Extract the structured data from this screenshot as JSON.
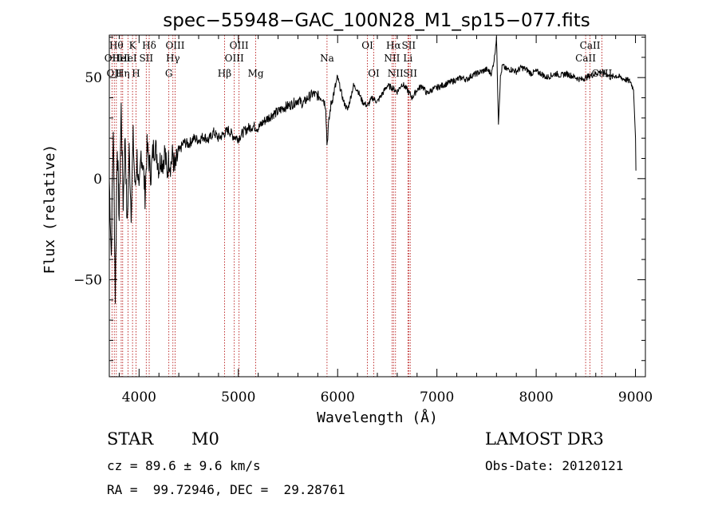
{
  "chart_data": {
    "type": "line",
    "title": "spec−55948−GAC_100N28_M1_sp15−077.fits",
    "xlabel": "Wavelength (Å)",
    "ylabel": "Flux (relative)",
    "xlim": [
      3700,
      9100
    ],
    "ylim": [
      -98,
      71
    ],
    "xticks": [
      {
        "value": 4000,
        "label": "4000"
      },
      {
        "value": 5000,
        "label": "5000"
      },
      {
        "value": 6000,
        "label": "6000"
      },
      {
        "value": 7000,
        "label": "7000"
      },
      {
        "value": 8000,
        "label": "8000"
      },
      {
        "value": 9000,
        "label": "9000"
      }
    ],
    "yticks": [
      {
        "value": 50,
        "label": "50"
      },
      {
        "value": 0,
        "label": "0"
      },
      {
        "value": -50,
        "label": "−50"
      }
    ],
    "series": [
      {
        "x": [
          3700,
          3720,
          3740,
          3760,
          3780,
          3800,
          3820,
          3840,
          3860,
          3880,
          3900,
          3920,
          3940,
          3960,
          3980,
          4000,
          4020,
          4040,
          4060,
          4080,
          4100,
          4120,
          4140,
          4160,
          4180,
          4200,
          4220,
          4240,
          4260,
          4280,
          4300,
          4320,
          4340,
          4360,
          4380,
          4400,
          4450,
          4500,
          4550,
          4600,
          4650,
          4700,
          4750,
          4800,
          4850,
          4900,
          4950,
          5000,
          5050,
          5100,
          5150,
          5200,
          5250,
          5300,
          5350,
          5400,
          5450,
          5500,
          5550,
          5600,
          5650,
          5700,
          5750,
          5800,
          5850,
          5880,
          5893,
          5905,
          5930,
          5960,
          6000,
          6030,
          6060,
          6100,
          6130,
          6160,
          6200,
          6250,
          6300,
          6350,
          6400,
          6450,
          6500,
          6550,
          6600,
          6650,
          6700,
          6750,
          6800,
          6850,
          6900,
          6950,
          7000,
          7050,
          7100,
          7150,
          7200,
          7250,
          7300,
          7350,
          7400,
          7450,
          7500,
          7550,
          7580,
          7600,
          7620,
          7640,
          7660,
          7700,
          7750,
          7800,
          7850,
          7900,
          7950,
          8000,
          8050,
          8100,
          8150,
          8200,
          8250,
          8300,
          8350,
          8400,
          8450,
          8500,
          8550,
          8600,
          8650,
          8700,
          8750,
          8800,
          8850,
          8900,
          8950,
          8980,
          9000,
          9005
        ],
        "values": [
          0,
          -38,
          26,
          -58,
          18,
          -20,
          35,
          -12,
          22,
          -25,
          14,
          -16,
          20,
          -6,
          11,
          -10,
          13,
          7,
          -8,
          15,
          9,
          2,
          14,
          16,
          12,
          5,
          11,
          8,
          14,
          2,
          10,
          7,
          12,
          4,
          9,
          13,
          18,
          17,
          20,
          19,
          21,
          19,
          23,
          20,
          22,
          24,
          21,
          20,
          23,
          25,
          26,
          25,
          28,
          30,
          32,
          33,
          35,
          36,
          37,
          39,
          37,
          40,
          42,
          41,
          40,
          36,
          16,
          25,
          36,
          42,
          50,
          44,
          38,
          34,
          40,
          46,
          44,
          38,
          36,
          40,
          38,
          42,
          46,
          45,
          43,
          47,
          44,
          40,
          44,
          46,
          42,
          44,
          45,
          46,
          47,
          48,
          49,
          50,
          49,
          51,
          52,
          53,
          54,
          52,
          60,
          70,
          28,
          50,
          56,
          54,
          54,
          53,
          55,
          54,
          52,
          53,
          52,
          50,
          51,
          52,
          51,
          52,
          51,
          50,
          49,
          50,
          51,
          52,
          53,
          52,
          50,
          51,
          50,
          49,
          48,
          44,
          20,
          0
        ]
      }
    ],
    "spectral_lines": [
      {
        "wavelength": 3727,
        "label": "OII",
        "row": 2
      },
      {
        "wavelength": 3750,
        "label": "OII",
        "row": 3
      },
      {
        "wavelength": 3771,
        "label": "Hθ",
        "row": 1
      },
      {
        "wavelength": 3820,
        "label": "HeI",
        "row": 2
      },
      {
        "wavelength": 3835,
        "label": "Hη",
        "row": 3
      },
      {
        "wavelength": 3889,
        "label": "HeI",
        "row": 2
      },
      {
        "wavelength": 3934,
        "label": "K",
        "row": 1
      },
      {
        "wavelength": 3969,
        "label": "H",
        "row": 3
      },
      {
        "wavelength": 4072,
        "label": "SII",
        "row": 2
      },
      {
        "wavelength": 4102,
        "label": "Hδ",
        "row": 1
      },
      {
        "wavelength": 4300,
        "label": "G",
        "row": 3
      },
      {
        "wavelength": 4341,
        "label": "Hγ",
        "row": 2
      },
      {
        "wavelength": 4363,
        "label": "OIII",
        "row": 1
      },
      {
        "wavelength": 4861,
        "label": "Hβ",
        "row": 3
      },
      {
        "wavelength": 4959,
        "label": "OIII",
        "row": 2
      },
      {
        "wavelength": 5007,
        "label": "OIII",
        "row": 1
      },
      {
        "wavelength": 5175,
        "label": "Mg",
        "row": 3
      },
      {
        "wavelength": 5893,
        "label": "Na",
        "row": 2
      },
      {
        "wavelength": 6300,
        "label": "OI",
        "row": 1
      },
      {
        "wavelength": 6364,
        "label": "OI",
        "row": 3
      },
      {
        "wavelength": 6548,
        "label": "NII",
        "row": 2
      },
      {
        "wavelength": 6563,
        "label": "Hα",
        "row": 1
      },
      {
        "wavelength": 6583,
        "label": "NII",
        "row": 3
      },
      {
        "wavelength": 6708,
        "label": "Li",
        "row": 2
      },
      {
        "wavelength": 6716,
        "label": "SII",
        "row": 1
      },
      {
        "wavelength": 6731,
        "label": "SII",
        "row": 3
      },
      {
        "wavelength": 8498,
        "label": "CaII",
        "row": 2
      },
      {
        "wavelength": 8542,
        "label": "CaII",
        "row": 1
      },
      {
        "wavelength": 8662,
        "label": "CaII",
        "row": 3
      }
    ],
    "grid": false,
    "legend": "none"
  },
  "info": {
    "class": "STAR",
    "subclass": "M0",
    "survey": "LAMOST DR3",
    "redshift": "cz = 89.6 ± 9.6 km/s",
    "obs_date": "Obs-Date: 20120121",
    "coords": "RA =  99.72946, DEC =  29.28761"
  }
}
